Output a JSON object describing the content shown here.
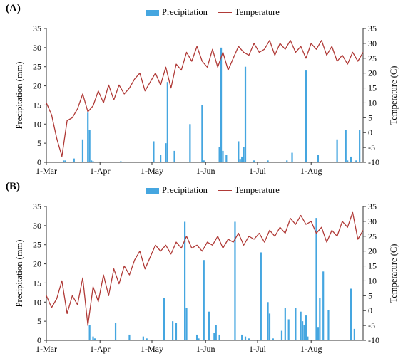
{
  "colors": {
    "precipitation": "#45A6E0",
    "temperature": "#B03A37",
    "axis": "#333333"
  },
  "chart_data": [
    {
      "panel_label": "(A)",
      "type": "bar+line",
      "legend": [
        "Precipitation",
        "Temperature"
      ],
      "legend_position": "top",
      "grid": false,
      "ylabel_left": "Precipitation (mm)",
      "ylabel_right": "Temperature (C)",
      "ylim_left": [
        0,
        35
      ],
      "ylim_right": [
        -10,
        35
      ],
      "yticks_left": [
        0,
        5,
        10,
        15,
        20,
        25,
        30,
        35
      ],
      "yticks_right": [
        -10,
        -5,
        0,
        5,
        10,
        15,
        20,
        25,
        30,
        35
      ],
      "xticks": [
        {
          "day": 0,
          "label": "1-Mar"
        },
        {
          "day": 31,
          "label": "1-Apr"
        },
        {
          "day": 61,
          "label": "1-May"
        },
        {
          "day": 92,
          "label": "1-Jun"
        },
        {
          "day": 122,
          "label": "1-Jul"
        },
        {
          "day": 153,
          "label": "1-Aug"
        }
      ],
      "x_range_days": [
        0,
        183
      ],
      "series": [
        {
          "name": "Precipitation",
          "kind": "bar",
          "x": [
            10,
            11,
            16,
            21,
            24,
            25,
            26,
            27,
            43,
            62,
            66,
            69,
            70,
            74,
            83,
            90,
            91,
            100,
            101,
            102,
            104,
            111,
            112,
            113,
            114,
            115,
            120,
            128,
            139,
            142,
            150,
            157,
            168,
            173,
            174,
            176,
            179,
            181
          ],
          "y": [
            0.5,
            0.5,
            1,
            6,
            13,
            8.5,
            0.5,
            0.3,
            0.3,
            5.5,
            2,
            5,
            21,
            3,
            10,
            15,
            0.5,
            4,
            30,
            3,
            2,
            5.5,
            0.7,
            1.5,
            4,
            25,
            0.5,
            0.5,
            0.5,
            2.5,
            24,
            2,
            6,
            8.5,
            0.5,
            1.5,
            0.5,
            8.5
          ]
        },
        {
          "name": "Temperature",
          "kind": "line",
          "x": [
            0,
            3,
            6,
            9,
            12,
            15,
            18,
            21,
            24,
            27,
            30,
            33,
            36,
            39,
            42,
            45,
            48,
            51,
            54,
            57,
            60,
            63,
            66,
            69,
            72,
            75,
            78,
            81,
            84,
            87,
            90,
            93,
            96,
            99,
            102,
            105,
            108,
            111,
            114,
            117,
            120,
            123,
            126,
            129,
            132,
            135,
            138,
            141,
            144,
            147,
            150,
            153,
            156,
            159,
            162,
            165,
            168,
            171,
            174,
            177,
            180,
            183
          ],
          "y": [
            10,
            6,
            -2,
            -8,
            4,
            5,
            8,
            13,
            7,
            9,
            14,
            10,
            16,
            11,
            16,
            13,
            15,
            18,
            20,
            14,
            17,
            20,
            16,
            22,
            15,
            23,
            21,
            27,
            24,
            29,
            24,
            22,
            28,
            22,
            27,
            21,
            25,
            29,
            27,
            26,
            30,
            27,
            28,
            31,
            26,
            30,
            28,
            31,
            27,
            29,
            25,
            30,
            28,
            31,
            26,
            29,
            24,
            26,
            23,
            27,
            24,
            27
          ]
        }
      ]
    },
    {
      "panel_label": "(B)",
      "type": "bar+line",
      "legend": [
        "Precipitation",
        "Temperature"
      ],
      "legend_position": "top",
      "grid": false,
      "ylabel_left": "Precipitation (mm)",
      "ylabel_right": "Temperature (C)",
      "ylim_left": [
        0,
        35
      ],
      "ylim_right": [
        -10,
        35
      ],
      "yticks_left": [
        0,
        5,
        10,
        15,
        20,
        25,
        30,
        35
      ],
      "yticks_right": [
        -10,
        -5,
        0,
        5,
        10,
        15,
        20,
        25,
        30,
        35
      ],
      "xticks": [
        {
          "day": 0,
          "label": "1-Mar"
        },
        {
          "day": 31,
          "label": "1-Apr"
        },
        {
          "day": 61,
          "label": "1-May"
        },
        {
          "day": 92,
          "label": "1-Jun"
        },
        {
          "day": 122,
          "label": "1-Jul"
        },
        {
          "day": 153,
          "label": "1-Aug"
        }
      ],
      "x_range_days": [
        0,
        183
      ],
      "series": [
        {
          "name": "Precipitation",
          "kind": "bar",
          "x": [
            25,
            27,
            28,
            40,
            48,
            56,
            58,
            68,
            73,
            75,
            80,
            81,
            87,
            88,
            91,
            94,
            97,
            98,
            100,
            109,
            113,
            115,
            117,
            124,
            128,
            129,
            131,
            136,
            138,
            140,
            144,
            147,
            148,
            149,
            150,
            151,
            156,
            157,
            158,
            160,
            163,
            176,
            178
          ],
          "y": [
            4,
            1,
            0.5,
            4.5,
            1.5,
            1,
            0.5,
            11,
            5,
            4.5,
            31,
            8.5,
            1.5,
            0.5,
            21,
            7.5,
            2,
            4,
            1.5,
            31,
            1.5,
            1,
            0.5,
            23,
            10,
            7,
            0.5,
            2.5,
            8.5,
            5.5,
            8.5,
            7.5,
            5,
            4,
            6.5,
            1,
            32,
            3.5,
            11,
            18,
            8,
            13.5,
            3
          ]
        },
        {
          "name": "Temperature",
          "kind": "line",
          "x": [
            0,
            3,
            6,
            9,
            12,
            15,
            18,
            21,
            24,
            27,
            30,
            33,
            36,
            39,
            42,
            45,
            48,
            51,
            54,
            57,
            60,
            63,
            66,
            69,
            72,
            75,
            78,
            81,
            84,
            87,
            90,
            93,
            96,
            99,
            102,
            105,
            108,
            111,
            114,
            117,
            120,
            123,
            126,
            129,
            132,
            135,
            138,
            141,
            144,
            147,
            150,
            153,
            156,
            159,
            162,
            165,
            168,
            171,
            174,
            177,
            180,
            183
          ],
          "y": [
            5,
            1,
            4,
            10,
            -1,
            5,
            2,
            11,
            -5,
            8,
            3,
            12,
            5,
            14,
            9,
            15,
            12,
            17,
            20,
            14,
            18,
            22,
            20,
            22,
            19,
            23,
            21,
            25,
            21,
            22,
            20,
            23,
            22,
            25,
            21,
            24,
            23,
            26,
            22,
            25,
            24,
            26,
            23,
            27,
            25,
            28,
            26,
            31,
            29,
            32,
            29,
            30,
            26,
            28,
            23,
            27,
            25,
            30,
            28,
            33,
            24,
            27
          ]
        }
      ]
    }
  ]
}
